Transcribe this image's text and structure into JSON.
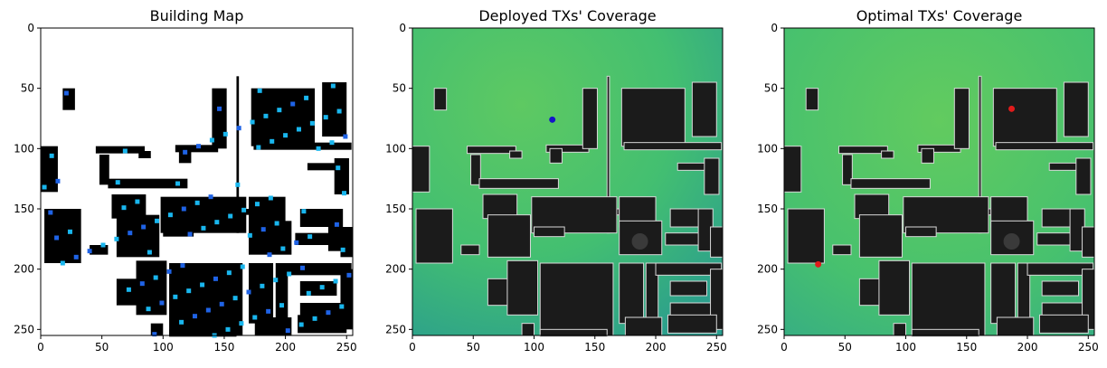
{
  "figure": {
    "panels": [
      {
        "title": "Building Map",
        "kind": "building-map"
      },
      {
        "title": "Deployed TXs' Coverage",
        "kind": "coverage",
        "tx_color": "#1515c8"
      },
      {
        "title": "Optimal TXs' Coverage",
        "kind": "coverage",
        "tx_color": "#e01b1b"
      }
    ]
  },
  "chart_data": [
    {
      "type": "heatmap",
      "title": "Building Map",
      "xlabel": "",
      "ylabel": "",
      "xlim": [
        0,
        255
      ],
      "ylim": [
        255,
        0
      ],
      "x_ticks": [
        0,
        50,
        100,
        150,
        200,
        250
      ],
      "y_ticks": [
        0,
        50,
        100,
        150,
        200,
        250
      ],
      "colors": {
        "background": "#ffffff",
        "building": "#000000",
        "candidate_point": "#19b6ee",
        "candidate_point_dense": "#1f63e6"
      }
    },
    {
      "type": "heatmap",
      "title": "Deployed TXs' Coverage",
      "xlabel": "",
      "ylabel": "",
      "xlim": [
        0,
        255
      ],
      "ylim": [
        255,
        0
      ],
      "x_ticks": [
        0,
        50,
        100,
        150,
        200,
        250
      ],
      "y_ticks": [
        0,
        50,
        100,
        150,
        200,
        250
      ],
      "transmitters": [
        {
          "x": 115,
          "y": 76
        }
      ],
      "colors": {
        "high": "#5dc863",
        "mid": "#3cb77a",
        "low": "#2a9d8e",
        "building": "#1b1b1b",
        "tx": "#1515c8"
      }
    },
    {
      "type": "heatmap",
      "title": "Optimal TXs' Coverage",
      "xlabel": "",
      "ylabel": "",
      "xlim": [
        0,
        255
      ],
      "ylim": [
        255,
        0
      ],
      "x_ticks": [
        0,
        50,
        100,
        150,
        200,
        250
      ],
      "y_ticks": [
        0,
        50,
        100,
        150,
        200,
        250
      ],
      "transmitters": [
        {
          "x": 187,
          "y": 67
        },
        {
          "x": 28,
          "y": 196
        }
      ],
      "colors": {
        "high": "#5dc863",
        "mid": "#3cb77a",
        "low": "#2a9d8e",
        "building": "#1b1b1b",
        "tx": "#e01b1b"
      }
    }
  ]
}
